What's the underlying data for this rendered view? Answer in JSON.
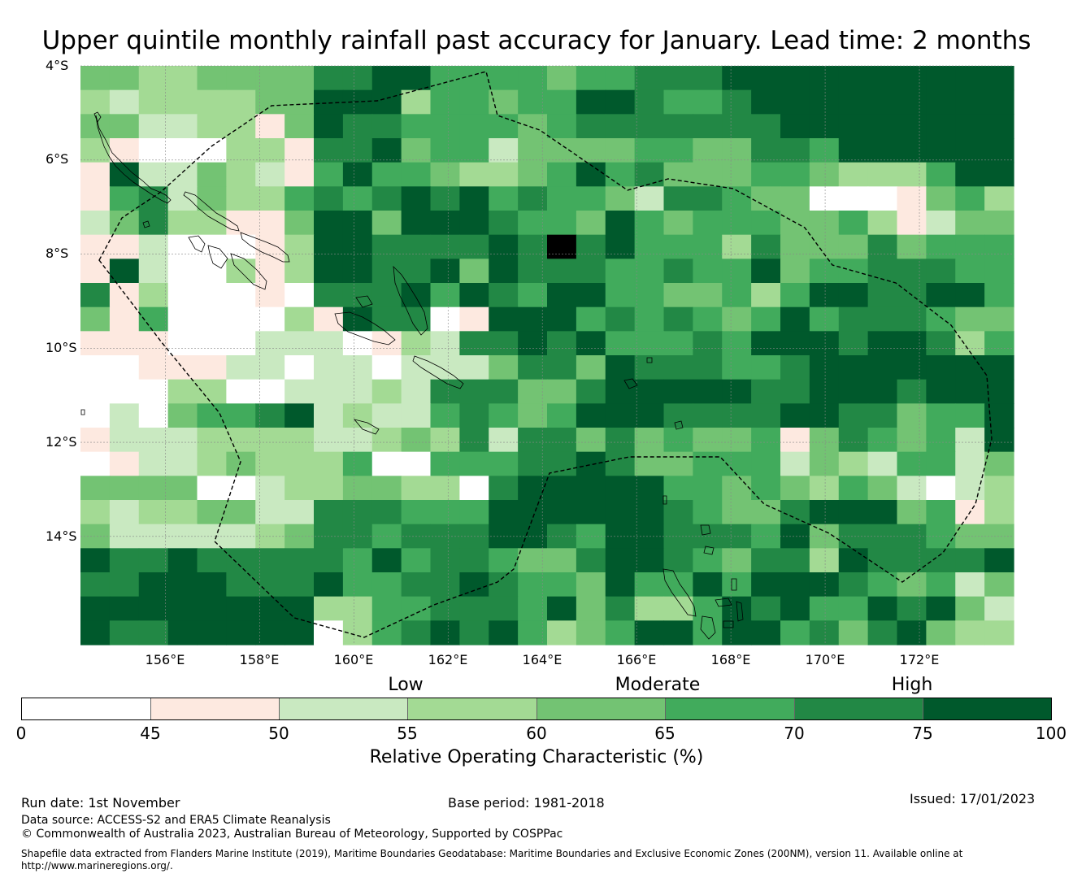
{
  "title": "Upper quintile monthly rainfall past accuracy for January. Lead time: 2 months",
  "map": {
    "lon_range": [
      154.2,
      174.0
    ],
    "lat_range": [
      -16.3,
      -4.0
    ],
    "lat_ticks": [
      "4°S",
      "6°S",
      "8°S",
      "10°S",
      "12°S",
      "14°S"
    ],
    "lat_tick_values": [
      -4,
      -6,
      -8,
      -10,
      -12,
      -14
    ],
    "lon_ticks": [
      "156°E",
      "158°E",
      "160°E",
      "162°E",
      "164°E",
      "166°E",
      "168°E",
      "170°E",
      "172°E"
    ],
    "lon_tick_values": [
      156,
      158,
      160,
      162,
      164,
      166,
      168,
      170,
      172
    ],
    "grid_note": "Grid of ROC score classes (0 = <45, 1 = 45-50, ... 7 = 75-100) by row (north to south) and column (west to east)",
    "grid_rows": [
      "44334444667755554556667777777777",
      "32333344777355455776556777777777",
      "44223314766555545666666677777777",
      "31000331667455244445544665777777",
      "17224321575543345756444554333577",
      "15624335656767565542665440001453",
      "24633114774777655475455544531244",
      "11200013776666768675553644464555",
      "17200313776674766655655745566655",
      "61300010666757657755445357766775",
      "41500003176601777565654575666544",
      "11100022201326676755565777677635",
      "00111220220222466476665567777777",
      "00033002223266644677777667776777",
      "02045567232256545777666677664557",
      "12223333223436266464544514654527",
      "01223433350055566764455524325524",
      "44440023344330677777554543542023",
      "32334422666555777777654467774513",
      "42222234665666776577666574666544",
      "76676666657566544677654663766667",
      "66777666755667655475575777654524",
      "77777777335566657463357675576742",
      "76677777035676753457757756467433"
    ],
    "colors": [
      "#ffffff",
      "#fde9e0",
      "#c9e9c1",
      "#a3da94",
      "#73c373",
      "#41ab5c",
      "#228845",
      "#00592c"
    ]
  },
  "categories": {
    "low": "Low",
    "moderate": "Moderate",
    "high": "High"
  },
  "colorbar": {
    "ticks": [
      "0",
      "45",
      "50",
      "55",
      "60",
      "65",
      "70",
      "75",
      "100"
    ],
    "tick_values": [
      0,
      45,
      50,
      55,
      60,
      65,
      70,
      75,
      100
    ],
    "label": "Relative Operating Characteristic (%)",
    "colors": [
      "#ffffff",
      "#fde9e0",
      "#c9e9c1",
      "#a3da94",
      "#73c373",
      "#41ab5c",
      "#228845",
      "#00592c"
    ]
  },
  "footer": {
    "run_date": "Run date: 1st November",
    "base_period": "Base period: 1981-2018",
    "issued": "Issued: 17/01/2023",
    "data_source": "Data source: ACCESS-S2 and ERA5 Climate Reanalysis",
    "copyright": "© Commonwealth of Australia 2023, Australian Bureau of Meteorology, Supported by COSPPac",
    "shapefile_line1": "Shapefile data extracted from Flanders Marine Institute (2019), Maritime Boundaries Geodatabase: Maritime Boundaries and Exclusive Economic Zones (200NM), version 11. Available online at",
    "shapefile_line2": "http://www.marineregions.org/."
  }
}
